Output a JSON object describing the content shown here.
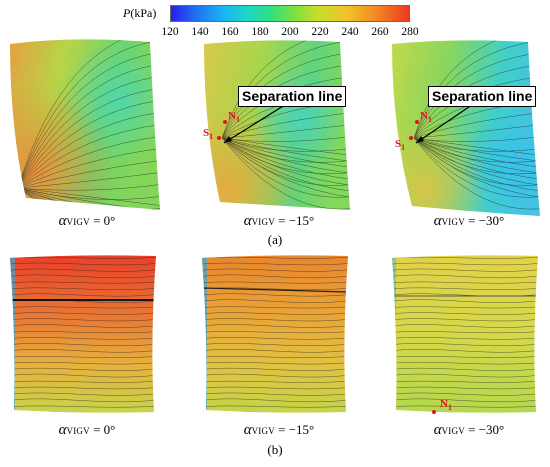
{
  "colorbar": {
    "title_var": "P",
    "title_unit": "(kPa)",
    "ticks": [
      "120",
      "140",
      "160",
      "180",
      "200",
      "220",
      "240",
      "260",
      "280"
    ],
    "min": 120,
    "max": 280
  },
  "alpha_symbol": "α",
  "alpha_subscript": "VIGV",
  "row_a": {
    "label": "(a)",
    "panels": [
      {
        "angle": " = 0°"
      },
      {
        "angle": " = −15°",
        "annotation": "Separation line",
        "node": "N",
        "saddle": "S",
        "index": "1"
      },
      {
        "angle": " = −30°",
        "annotation": "Separation line",
        "node": "N",
        "saddle": "S",
        "index": "1"
      }
    ]
  },
  "row_b": {
    "label": "(b)",
    "panels": [
      {
        "angle": " = 0°"
      },
      {
        "angle": " = −15°"
      },
      {
        "angle": " = −30°",
        "node": "N",
        "index": "1"
      }
    ]
  },
  "colors": {
    "deep_red": "#e8402a",
    "orange": "#e9963a",
    "yellow": "#e2d84a",
    "green": "#8ed24e",
    "teal": "#4ad8b0",
    "cyan": "#3ec8e8",
    "marker_red": "#e0141e"
  }
}
